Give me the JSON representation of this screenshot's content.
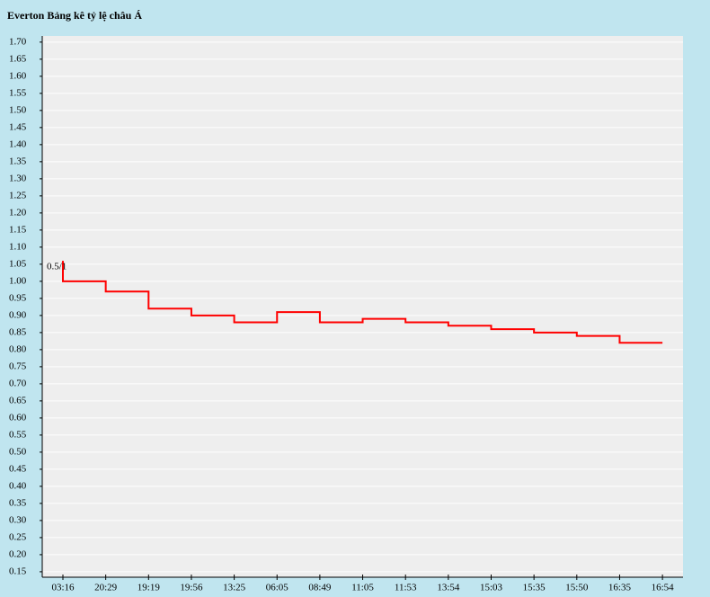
{
  "chart_data": {
    "type": "step-line",
    "title": "Everton Bảng kê tỷ lệ châu Á",
    "annotation": "0.5/1",
    "start_value": 1.06,
    "categories": [
      "03:16",
      "20:29",
      "19:19",
      "19:56",
      "13:25",
      "06:05",
      "08:49",
      "11:05",
      "11:53",
      "13:54",
      "15:03",
      "15:35",
      "15:50",
      "16:35",
      "16:54"
    ],
    "values": [
      1.0,
      0.97,
      0.92,
      0.9,
      0.88,
      0.91,
      0.88,
      0.89,
      0.88,
      0.87,
      0.86,
      0.85,
      0.84,
      0.82,
      0.82
    ],
    "color": "#ff0000",
    "ylim": [
      0.134,
      1.718
    ],
    "yticks": [
      0.15,
      {
        "value": 0.2,
        "label": "0.20"
      },
      0.25,
      {
        "value": 0.3,
        "label": "0.30"
      },
      0.35,
      {
        "value": 0.4,
        "label": "0.40"
      },
      0.45,
      {
        "value": 0.5,
        "label": "0.50"
      },
      0.55,
      {
        "value": 0.6,
        "label": "0.60"
      },
      0.65,
      {
        "value": 0.7,
        "label": "0.70"
      },
      0.75,
      {
        "value": 0.8,
        "label": "0.80"
      },
      0.85,
      {
        "value": 0.9,
        "label": "0.90"
      },
      0.95,
      {
        "value": 1.0,
        "label": "1.00"
      },
      1.05,
      {
        "value": 1.1,
        "label": "1.10"
      },
      1.15,
      {
        "value": 1.2,
        "label": "1.20"
      },
      1.25,
      {
        "value": 1.3,
        "label": "1.30"
      },
      1.35,
      {
        "value": 1.4,
        "label": "1.40"
      },
      1.45,
      {
        "value": 1.5,
        "label": "1.50"
      },
      1.55,
      {
        "value": 1.6,
        "label": "1.60"
      },
      1.65,
      {
        "value": 1.7,
        "label": "1.70"
      }
    ],
    "grid": true
  }
}
